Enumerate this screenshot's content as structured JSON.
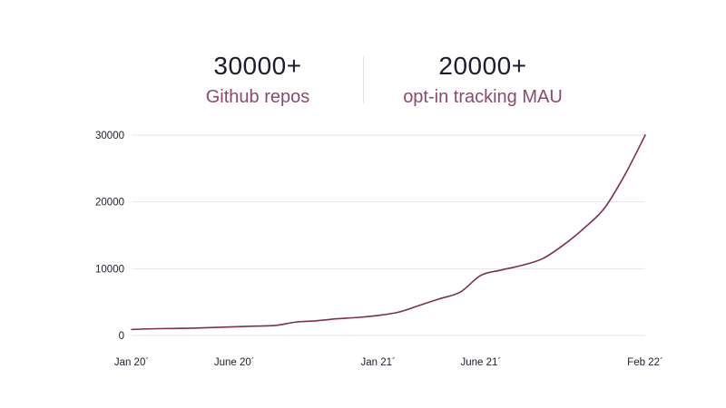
{
  "stats": [
    {
      "value": "30000+",
      "label": "Github repos"
    },
    {
      "value": "20000+",
      "label": "opt-in tracking MAU"
    }
  ],
  "chart_data": {
    "type": "line",
    "title": "",
    "xlabel": "",
    "ylabel": "",
    "x_ticks": [
      "Jan 20´",
      "June 20´",
      "Jan 21´",
      "June 21´",
      "Feb 22´"
    ],
    "y_ticks": [
      "0",
      "10000",
      "20000",
      "30000"
    ],
    "ylim": [
      0,
      30000
    ],
    "grid": "horizontal",
    "line_color": "#7a2f55",
    "series": [
      {
        "x": [
          "2020-01",
          "2020-02",
          "2020-03",
          "2020-04",
          "2020-05",
          "2020-06",
          "2020-07",
          "2020-08",
          "2020-09",
          "2020-10",
          "2020-11",
          "2020-12",
          "2021-01",
          "2021-02",
          "2021-03",
          "2021-04",
          "2021-05",
          "2021-06",
          "2021-07",
          "2021-08",
          "2021-09",
          "2021-10",
          "2021-11",
          "2021-12",
          "2022-01",
          "2022-02"
        ],
        "values": [
          900,
          1000,
          1050,
          1100,
          1200,
          1300,
          1400,
          1500,
          2000,
          2200,
          2500,
          2700,
          3000,
          3500,
          4500,
          5500,
          6500,
          9000,
          9800,
          10500,
          11500,
          13500,
          16000,
          19000,
          24000,
          30000
        ]
      }
    ]
  }
}
